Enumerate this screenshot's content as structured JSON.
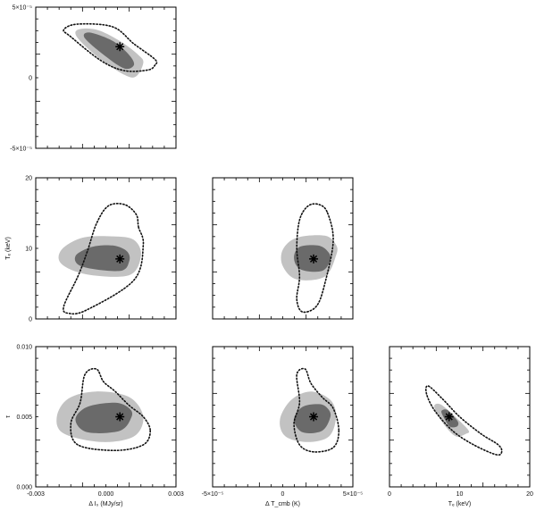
{
  "chart_data": [
    {
      "type": "contour",
      "panel": "dT_cmb vs dI0",
      "xlabel": "",
      "ylabel": "",
      "xlim": [
        -0.003,
        0.003
      ],
      "ylim": [
        -5e-05,
        5e-05
      ],
      "xticks": [],
      "yticks": [
        "-5×10⁻⁵",
        "0",
        "5×10⁻⁵"
      ],
      "best_fit": {
        "x": 0.0006,
        "y": 2.2e-05
      },
      "regions": {
        "light": [
          [
            0.0016,
            1.05e-05
          ],
          [
            0.0013,
            1e-06
          ],
          [
            0.0008,
            2e-06
          ],
          [
            -0.0003,
            1.4e-05
          ],
          [
            -0.0012,
            2.8e-05
          ],
          [
            -0.0012,
            3.4e-05
          ],
          [
            -0.0004,
            3.4e-05
          ],
          [
            0.0006,
            2.6e-05
          ],
          [
            0.0014,
            1.6e-05
          ]
        ],
        "dark": [
          [
            0.0012,
            9e-06
          ],
          [
            0.0008,
            6.5e-06
          ],
          [
            0.0,
            1.5e-05
          ],
          [
            -0.0009,
            2.8e-05
          ],
          [
            -0.0007,
            3.2e-05
          ],
          [
            0.0003,
            2.6e-05
          ],
          [
            0.001,
            1.6e-05
          ]
        ],
        "dotted": [
          [
            0.0021,
            9e-06
          ],
          [
            0.0018,
            5.5e-06
          ],
          [
            0.0008,
            5e-06
          ],
          [
            -0.0002,
            1.2e-05
          ],
          [
            -0.0015,
            2.9e-05
          ],
          [
            -0.0018,
            3.4e-05
          ],
          [
            -0.0012,
            3.8e-05
          ],
          [
            0.0003,
            3.6e-05
          ],
          [
            0.0012,
            2.4e-05
          ],
          [
            0.0021,
            1.3e-05
          ]
        ]
      }
    },
    {
      "type": "contour",
      "panel": "Te vs dI0",
      "xlabel": "",
      "ylabel": "Tₑ (keV)",
      "xlim": [
        -0.003,
        0.003
      ],
      "ylim": [
        0,
        20
      ],
      "xticks": [],
      "yticks": [
        "0",
        "10",
        "20"
      ],
      "best_fit": {
        "x": 0.0006,
        "y": 8.5
      },
      "regions": {
        "light": [
          [
            0.0015,
            9.0
          ],
          [
            0.001,
            6.2
          ],
          [
            -0.0008,
            6.3
          ],
          [
            -0.0019,
            7.8
          ],
          [
            -0.0019,
            9.8
          ],
          [
            -0.001,
            11.5
          ],
          [
            0.0003,
            11.7
          ],
          [
            0.0012,
            11.2
          ]
        ],
        "dark": [
          [
            0.001,
            8.2
          ],
          [
            0.0006,
            6.8
          ],
          [
            -0.001,
            7.4
          ],
          [
            -0.0013,
            8.9
          ],
          [
            -0.0006,
            10.2
          ],
          [
            0.0003,
            10.4
          ],
          [
            0.0009,
            9.6
          ]
        ],
        "dotted": [
          [
            0.0014,
            13.0
          ],
          [
            0.0016,
            10.5
          ],
          [
            0.0012,
            5.5
          ],
          [
            -0.0008,
            1.3
          ],
          [
            -0.0016,
            0.8
          ],
          [
            -0.0018,
            1.8
          ],
          [
            -0.0012,
            6.0
          ],
          [
            -0.0008,
            9.5
          ],
          [
            -0.0004,
            13.5
          ],
          [
            0.0001,
            16.0
          ],
          [
            0.0008,
            16.2
          ],
          [
            0.0013,
            14.8
          ]
        ]
      }
    },
    {
      "type": "contour",
      "panel": "Te vs dT_cmb",
      "xlabel": "",
      "ylabel": "",
      "xlim": [
        -5e-05,
        5e-05
      ],
      "ylim": [
        0,
        20
      ],
      "xticks": [],
      "yticks": [],
      "best_fit": {
        "x": 2.2e-05,
        "y": 8.5
      },
      "regions": {
        "light": [
          [
            3.8e-05,
            9.0
          ],
          [
            3e-05,
            6.0
          ],
          [
            1e-05,
            5.6
          ],
          [
            0.0,
            7.5
          ],
          [
            0.0,
            9.8
          ],
          [
            1e-05,
            11.5
          ],
          [
            3e-05,
            11.8
          ],
          [
            3.8e-05,
            10.5
          ]
        ],
        "dark": [
          [
            3.4e-05,
            8.4
          ],
          [
            2.8e-05,
            6.8
          ],
          [
            1.3e-05,
            7.0
          ],
          [
            8e-06,
            8.6
          ],
          [
            1.2e-05,
            10.2
          ],
          [
            2.5e-05,
            10.4
          ],
          [
            3.2e-05,
            9.6
          ]
        ],
        "dotted": [
          [
            3.2e-05,
            15.0
          ],
          [
            3.6e-05,
            11.0
          ],
          [
            3e-05,
            5.0
          ],
          [
            2.4e-05,
            1.8
          ],
          [
            1.4e-05,
            1.0
          ],
          [
            1e-05,
            2.8
          ],
          [
            1.2e-05,
            6.0
          ],
          [
            1e-05,
            10.0
          ],
          [
            1.2e-05,
            14.0
          ],
          [
            1.8e-05,
            16.0
          ],
          [
            2.6e-05,
            16.2
          ]
        ]
      }
    },
    {
      "type": "contour",
      "panel": "tau vs dI0",
      "xlabel": "Δ I₀ (MJy/sr)",
      "ylabel": "τ",
      "xlim": [
        -0.003,
        0.003
      ],
      "ylim": [
        0,
        0.01
      ],
      "xticks": [
        "-0.003",
        "0.000",
        "0.003"
      ],
      "yticks": [
        "0.000",
        "0.005",
        "0.010"
      ],
      "best_fit": {
        "x": 0.0006,
        "y": 0.005
      },
      "regions": {
        "light": [
          [
            0.0016,
            0.005
          ],
          [
            0.0012,
            0.0036
          ],
          [
            -0.0002,
            0.0032
          ],
          [
            -0.0018,
            0.0038
          ],
          [
            -0.0021,
            0.005
          ],
          [
            -0.0016,
            0.0063
          ],
          [
            -0.0004,
            0.0068
          ],
          [
            0.001,
            0.0064
          ]
        ],
        "dark": [
          [
            0.0011,
            0.005
          ],
          [
            0.0006,
            0.004
          ],
          [
            -0.0008,
            0.0039
          ],
          [
            -0.0013,
            0.0048
          ],
          [
            -0.0008,
            0.0057
          ],
          [
            0.0004,
            0.006
          ],
          [
            0.001,
            0.0056
          ]
        ],
        "dotted": [
          [
            0.0019,
            0.004
          ],
          [
            0.0016,
            0.003
          ],
          [
            0.0004,
            0.0026
          ],
          [
            -0.0012,
            0.003
          ],
          [
            -0.0015,
            0.0045
          ],
          [
            -0.0011,
            0.006
          ],
          [
            -0.0009,
            0.008
          ],
          [
            -0.0004,
            0.0084
          ],
          [
            -0.0001,
            0.0075
          ],
          [
            0.0004,
            0.0068
          ],
          [
            0.001,
            0.0058
          ],
          [
            0.0016,
            0.005
          ]
        ]
      }
    },
    {
      "type": "contour",
      "panel": "tau vs dT_cmb",
      "xlabel": "Δ T_cmb (K)",
      "ylabel": "",
      "xlim": [
        -5e-05,
        5e-05
      ],
      "ylim": [
        0,
        0.01
      ],
      "xticks": [
        "-5×10⁻⁵",
        "0",
        "5×10⁻⁵"
      ],
      "yticks": [],
      "best_fit": {
        "x": 2.2e-05,
        "y": 0.005
      },
      "regions": {
        "light": [
          [
            3.8e-05,
            0.005
          ],
          [
            3.3e-05,
            0.0036
          ],
          [
            1.8e-05,
            0.0032
          ],
          [
            2e-06,
            0.0036
          ],
          [
            -2e-06,
            0.0048
          ],
          [
            6e-06,
            0.0062
          ],
          [
            2e-05,
            0.0068
          ],
          [
            3.4e-05,
            0.0062
          ]
        ],
        "dark": [
          [
            3.4e-05,
            0.005
          ],
          [
            2.8e-05,
            0.004
          ],
          [
            1.4e-05,
            0.0039
          ],
          [
            8e-06,
            0.0048
          ],
          [
            1.4e-05,
            0.0057
          ],
          [
            2.6e-05,
            0.0059
          ],
          [
            3.2e-05,
            0.0056
          ]
        ],
        "dotted": [
          [
            4e-05,
            0.004
          ],
          [
            3.6e-05,
            0.0028
          ],
          [
            2.2e-05,
            0.0025
          ],
          [
            1.2e-05,
            0.003
          ],
          [
            8e-06,
            0.0045
          ],
          [
            1.2e-05,
            0.006
          ],
          [
            1e-05,
            0.008
          ],
          [
            1.6e-05,
            0.0084
          ],
          [
            2e-05,
            0.0074
          ],
          [
            2.8e-05,
            0.0064
          ],
          [
            3.6e-05,
            0.0056
          ]
        ]
      }
    },
    {
      "type": "contour",
      "panel": "tau vs Te",
      "xlabel": "Tₑ (keV)",
      "ylabel": "",
      "xlim": [
        0,
        20
      ],
      "ylim": [
        0,
        0.01
      ],
      "xticks": [
        "0",
        "10",
        "20"
      ],
      "yticks": [],
      "best_fit": {
        "x": 8.5,
        "y": 0.005
      },
      "regions": {
        "light": [
          [
            11.0,
            0.0038
          ],
          [
            9.5,
            0.0036
          ],
          [
            8.0,
            0.0043
          ],
          [
            6.8,
            0.0052
          ],
          [
            6.4,
            0.0058
          ],
          [
            7.2,
            0.0059
          ],
          [
            8.5,
            0.0054
          ],
          [
            10.2,
            0.0046
          ],
          [
            11.3,
            0.004
          ]
        ],
        "dark": [
          [
            9.6,
            0.0043
          ],
          [
            8.6,
            0.0043
          ],
          [
            7.8,
            0.0049
          ],
          [
            7.4,
            0.0054
          ],
          [
            8.2,
            0.0055
          ],
          [
            9.2,
            0.005
          ],
          [
            9.8,
            0.0046
          ]
        ],
        "dotted": [
          [
            16.0,
            0.0025
          ],
          [
            15.2,
            0.0023
          ],
          [
            12.0,
            0.003
          ],
          [
            9.0,
            0.004
          ],
          [
            6.5,
            0.0054
          ],
          [
            5.3,
            0.0066
          ],
          [
            5.5,
            0.0072
          ],
          [
            7.5,
            0.0063
          ],
          [
            10.0,
            0.005
          ],
          [
            13.0,
            0.0038
          ],
          [
            15.5,
            0.003
          ]
        ]
      }
    }
  ]
}
